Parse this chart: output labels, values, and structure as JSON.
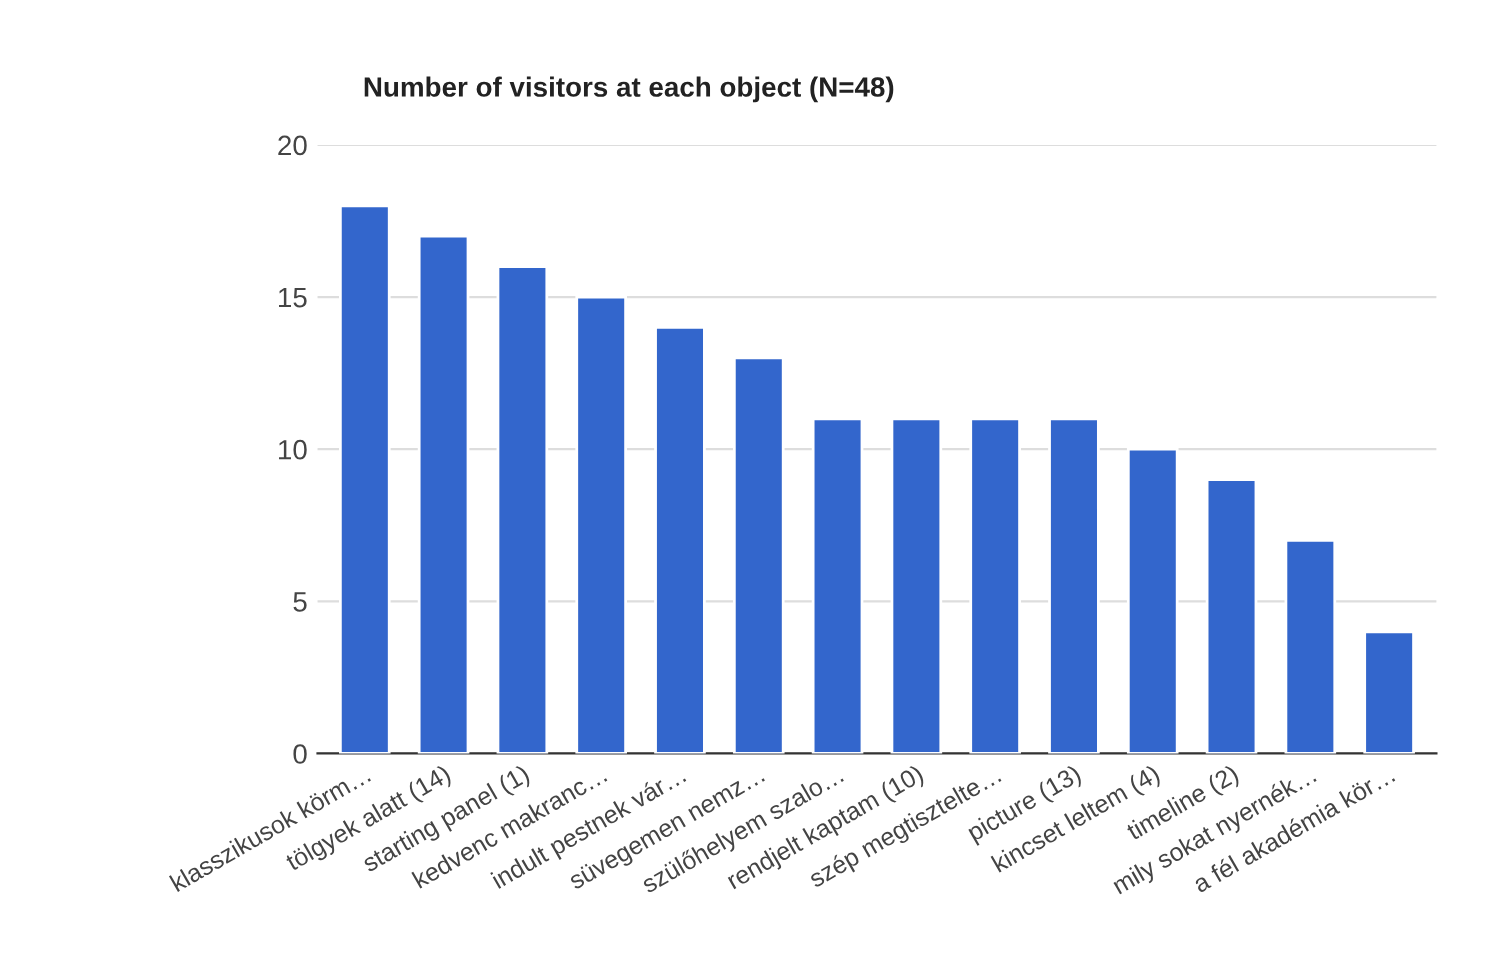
{
  "chart_data": {
    "type": "bar",
    "title": "Number of visitors at each object (N=48)",
    "categories": [
      "klasszikusok körm…",
      "tölgyek alatt (14)",
      "starting panel (1)",
      "kedvenc makranc…",
      "indult pestnek vár…",
      "süvegemen nemz…",
      "szülőhelyem szalo…",
      "rendjelt kaptam (10)",
      "szép megtisztelte…",
      "picture (13)",
      "kincset leltem (4)",
      "timeline (2)",
      "mily sokat nyernék…",
      "a fél akadémia kör…"
    ],
    "values": [
      18,
      17,
      16,
      15,
      14,
      13,
      11,
      11,
      11,
      11,
      10,
      9,
      7,
      4
    ],
    "color": "#3366cc",
    "ylim": [
      0,
      20
    ],
    "yticks": [
      0,
      5,
      10,
      15,
      20
    ],
    "grid": "y"
  }
}
